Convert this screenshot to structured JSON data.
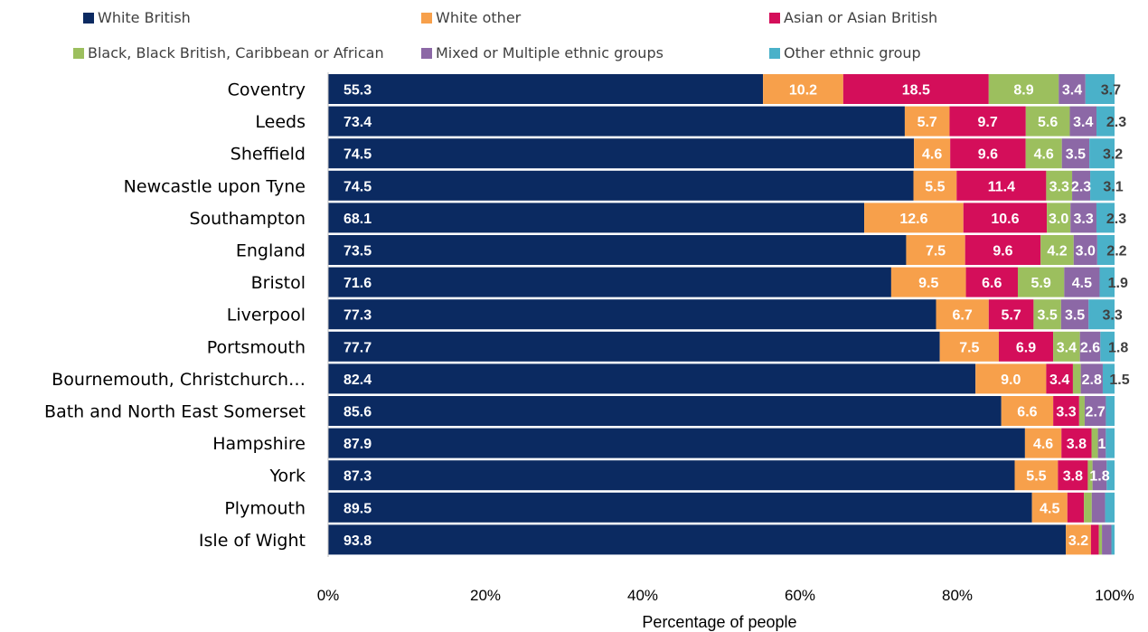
{
  "chart_data": {
    "type": "bar",
    "orientation": "horizontal",
    "stacked": "percent",
    "xlabel": "Percentage of people",
    "xlim": [
      0,
      100
    ],
    "x_ticks": [
      "0%",
      "20%",
      "40%",
      "60%",
      "80%",
      "100%"
    ],
    "legend_position": "top",
    "categories": [
      "Coventry",
      "Leeds",
      "Sheffield",
      "Newcastle upon Tyne",
      "Southampton",
      "England",
      "Bristol",
      "Liverpool",
      "Portsmouth",
      "Bournemouth, Christchurch…",
      "Bath and North East Somerset",
      "Hampshire",
      "York",
      "Plymouth",
      "Isle of Wight"
    ],
    "series": [
      {
        "name": "White British",
        "color": "#0b2a61",
        "values": [
          55.3,
          73.4,
          74.5,
          74.5,
          68.1,
          73.5,
          71.6,
          77.3,
          77.7,
          82.4,
          85.6,
          87.9,
          87.3,
          89.5,
          93.8
        ],
        "labels": [
          "55.3",
          "73.4",
          "74.5",
          "74.5",
          "68.1",
          "73.5",
          "71.6",
          "77.3",
          "77.7",
          "82.4",
          "85.6",
          "87.9",
          "87.3",
          "89.5",
          "93.8"
        ]
      },
      {
        "name": "White other",
        "color": "#f7a04b",
        "values": [
          10.2,
          5.7,
          4.6,
          5.5,
          12.6,
          7.5,
          9.5,
          6.7,
          7.5,
          9.0,
          6.6,
          4.6,
          5.5,
          4.5,
          3.2
        ],
        "labels": [
          "10.2",
          "5.7",
          "4.6",
          "5.5",
          "12.6",
          "7.5",
          "9.5",
          "6.7",
          "7.5",
          "9.0",
          "6.6",
          "4.6",
          "5.5",
          "4.5",
          "3.2"
        ]
      },
      {
        "name": "Asian or Asian British",
        "color": "#d40e5a",
        "values": [
          18.5,
          9.7,
          9.6,
          11.4,
          10.6,
          9.6,
          6.6,
          5.7,
          6.9,
          3.4,
          3.3,
          3.8,
          3.8,
          2.1,
          1.0
        ],
        "labels": [
          "18.5",
          "9.7",
          "9.6",
          "11.4",
          "10.6",
          "9.6",
          "6.6",
          "5.7",
          "6.9",
          "3.4",
          "3.3",
          "3.8",
          "3.8",
          "",
          ""
        ]
      },
      {
        "name": "Black, Black British, Caribbean or African",
        "color": "#9cbf5e",
        "values": [
          8.9,
          5.6,
          4.6,
          3.3,
          3.0,
          4.2,
          5.9,
          3.5,
          3.4,
          1.0,
          0.7,
          0.8,
          0.6,
          1.0,
          0.4
        ],
        "labels": [
          "8.9",
          "5.6",
          "4.6",
          "3.3",
          "3.0",
          "4.2",
          "5.9",
          "3.5",
          "3.4",
          "",
          "",
          "",
          "",
          "",
          ""
        ]
      },
      {
        "name": "Mixed or Multiple ethnic groups",
        "color": "#8c68a6",
        "values": [
          3.4,
          3.4,
          3.5,
          2.3,
          3.3,
          3.0,
          4.5,
          3.5,
          2.6,
          2.8,
          2.7,
          1.0,
          1.8,
          1.7,
          1.2
        ],
        "labels": [
          "3.4",
          "3.4",
          "3.5",
          "2.3",
          "3.3",
          "3.0",
          "4.5",
          "3.5",
          "2.6",
          "2.8",
          "2.7",
          "1",
          "1.8",
          "",
          ""
        ]
      },
      {
        "name": "Other ethnic group",
        "color": "#4ab1c9",
        "values": [
          3.7,
          2.3,
          3.2,
          3.1,
          2.3,
          2.2,
          1.9,
          3.3,
          1.8,
          1.5,
          1.1,
          1.1,
          1.0,
          1.2,
          0.4
        ],
        "labels": [
          "3.7",
          "2.3",
          "3.2",
          "3.1",
          "2.3",
          "2.2",
          "1.9",
          "3.3",
          "1.8",
          "1.5",
          "",
          "",
          "",
          "",
          ""
        ]
      }
    ]
  }
}
